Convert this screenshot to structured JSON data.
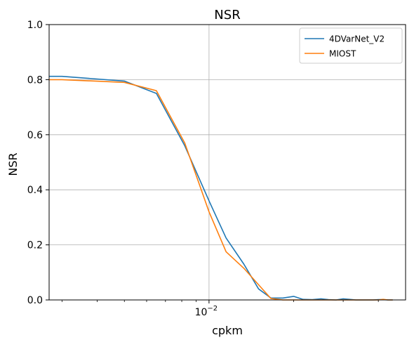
{
  "chart_data": {
    "type": "line",
    "title": "NSR",
    "xlabel": "cpkm",
    "ylabel": "NSR",
    "x_scale": "log",
    "xlim": [
      0.0027,
      0.05
    ],
    "ylim": [
      0,
      1.0
    ],
    "grid": true,
    "legend_position": "top-right",
    "x_ticks": [
      {
        "value": 0.01,
        "base": "10",
        "exponent": "−2"
      }
    ],
    "y_ticks": [
      "0.0",
      "0.2",
      "0.4",
      "0.6",
      "0.8",
      "1.0"
    ],
    "x": [
      0.0027,
      0.003,
      0.005,
      0.0065,
      0.0082,
      0.01,
      0.0115,
      0.0133,
      0.015,
      0.0166,
      0.0183,
      0.02,
      0.0216,
      0.0233,
      0.025,
      0.0266,
      0.0283,
      0.03,
      0.0316,
      0.0333,
      0.035,
      0.0366,
      0.0383,
      0.04,
      0.0416,
      0.0433,
      0.045
    ],
    "series": [
      {
        "name": "4DVarNet_V2",
        "color": "#1f77b4",
        "values": [
          0.812,
          0.812,
          0.795,
          0.75,
          0.56,
          0.36,
          0.225,
          0.13,
          0.04,
          0.007,
          0.007,
          0.013,
          0.002,
          0.001,
          0.004,
          0.001,
          0.0,
          0.004,
          0.002,
          0.0,
          0.0,
          0.0,
          0.0,
          0.001,
          0.001,
          0.0,
          0.0
        ]
      },
      {
        "name": "MIOST",
        "color": "#ff7f0e",
        "values": [
          0.8,
          0.8,
          0.79,
          0.76,
          0.57,
          0.32,
          0.175,
          0.115,
          0.055,
          0.005,
          0.0,
          0.0,
          0.0,
          0.0,
          0.0,
          0.0,
          0.0,
          0.0,
          0.0,
          0.0,
          0.0,
          0.0,
          0.0,
          0.0,
          0.002,
          0.0,
          0.0
        ]
      }
    ]
  }
}
